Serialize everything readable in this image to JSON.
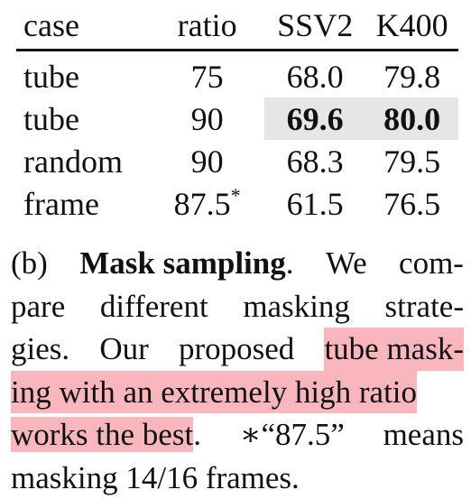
{
  "table": {
    "headers": [
      "case",
      "ratio",
      "SSV2",
      "K400"
    ],
    "rows": [
      {
        "case": "tube",
        "ratio": "75",
        "ratio_sup": "",
        "ssv2": "68.0",
        "k400": "79.8"
      },
      {
        "case": "tube",
        "ratio": "90",
        "ratio_sup": "",
        "ssv2": "69.6",
        "k400": "80.0"
      },
      {
        "case": "random",
        "ratio": "90",
        "ratio_sup": "",
        "ssv2": "68.3",
        "k400": "79.5"
      },
      {
        "case": "frame",
        "ratio": "87.5",
        "ratio_sup": "*",
        "ssv2": "61.5",
        "k400": "76.5"
      }
    ]
  },
  "caption": {
    "label": "(b)",
    "title": "Mask sampling",
    "line1_after_title": ".",
    "line1_words": [
      "We",
      "com-"
    ],
    "line2_words": [
      "pare",
      "different",
      "masking",
      "strate-"
    ],
    "line3_words": [
      "gies.",
      "Our",
      "proposed"
    ],
    "line3_highlight": "tube mask-",
    "line4_highlight": "ing with an extremely high ratio",
    "line5_highlight": "works the best",
    "line5_rest": ".",
    "line5_words": [
      "∗“87.5”",
      "means"
    ],
    "line6": "masking 14/16 frames."
  }
}
